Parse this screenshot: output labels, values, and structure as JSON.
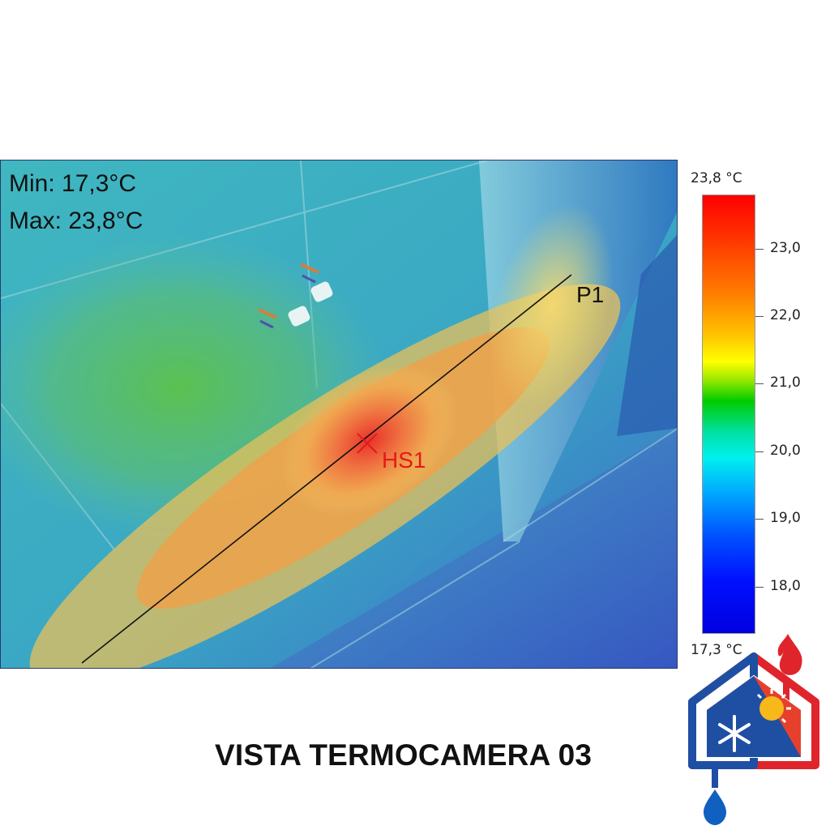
{
  "readouts": {
    "min": "Min: 17,3°C",
    "max": "Max: 23,8°C"
  },
  "markers": {
    "line": "P1",
    "hotspot": "HS1"
  },
  "scale": {
    "max_label": "23,8 °C",
    "min_label": "17,3 °C",
    "ticks": [
      {
        "label": "23,0",
        "value": 23.0
      },
      {
        "label": "22,0",
        "value": 22.0
      },
      {
        "label": "21,0",
        "value": 21.0
      },
      {
        "label": "20,0",
        "value": 20.0
      },
      {
        "label": "19,0",
        "value": 19.0
      },
      {
        "label": "18,0",
        "value": 18.0
      }
    ],
    "range": [
      17.3,
      23.8
    ]
  },
  "caption": "VISTA TERMOCAMERA 03",
  "colors": {
    "hotspot": "#e21b1b",
    "logo_red": "#e0242c",
    "logo_blue": "#1f4fa3",
    "logo_water": "#1060c0"
  }
}
